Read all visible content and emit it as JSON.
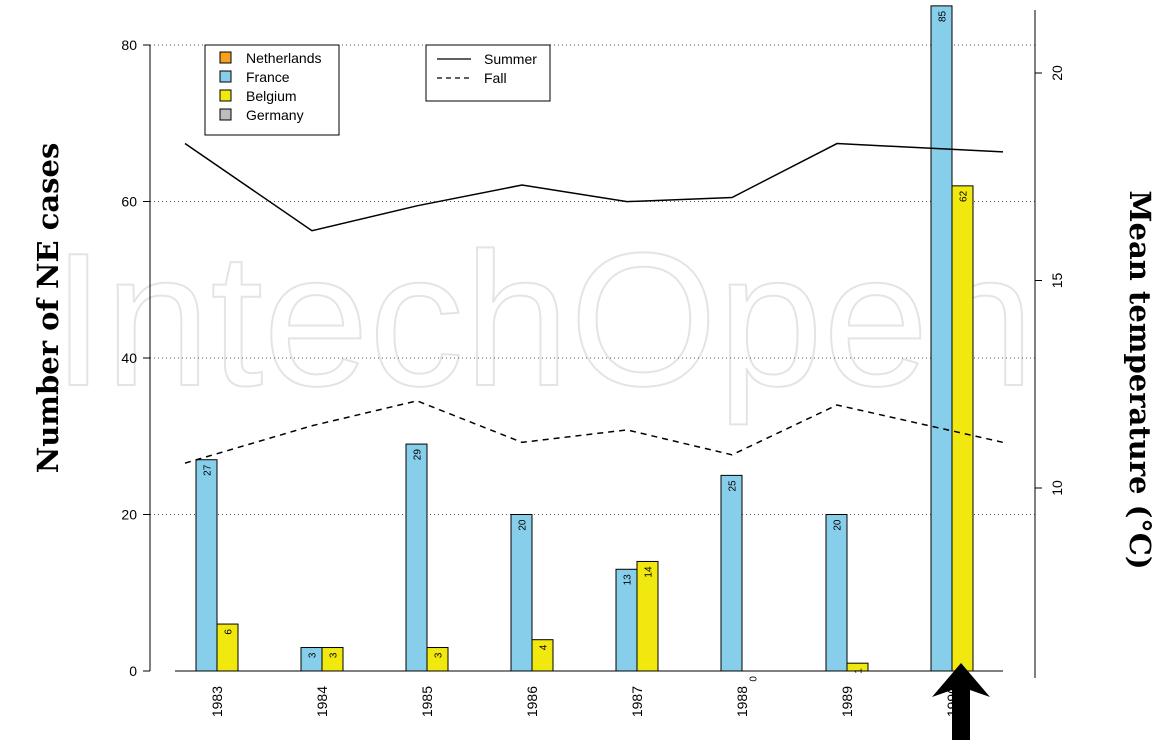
{
  "chart_data": {
    "type": "bar",
    "categories": [
      "1983",
      "1984",
      "1985",
      "1986",
      "1987",
      "1988",
      "1989",
      "1990"
    ],
    "series": [
      {
        "name": "France",
        "color": "#87ceeb",
        "values": [
          27,
          3,
          29,
          20,
          13,
          25,
          20,
          85
        ]
      },
      {
        "name": "Belgium",
        "color": "#f0e80f",
        "values": [
          6,
          3,
          3,
          4,
          14,
          0,
          1,
          62
        ]
      }
    ],
    "legend_bars": [
      {
        "name": "Netherlands",
        "color": "#f7a21a"
      },
      {
        "name": "France",
        "color": "#87ceeb"
      },
      {
        "name": "Belgium",
        "color": "#f0e80f"
      },
      {
        "name": "Germany",
        "color": "#bdbdbd"
      }
    ],
    "lines": [
      {
        "name": "Summer",
        "style": "solid",
        "values": [
          18.3,
          16.2,
          16.8,
          17.3,
          16.9,
          17.0,
          18.3,
          18.1
        ]
      },
      {
        "name": "Fall",
        "style": "dashed",
        "values": [
          10.6,
          11.5,
          12.1,
          11.1,
          11.4,
          10.8,
          12.0,
          11.1
        ]
      }
    ],
    "ylabel": "Number of NE cases",
    "ylabel_right": "Mean temperature (°C)",
    "ylim": [
      0,
      90
    ],
    "yticks": [
      "0",
      "20",
      "40",
      "60",
      "80"
    ],
    "ylim_right": [
      7.5,
      21.5
    ],
    "yticks_right": [
      "10",
      "15",
      "20"
    ],
    "grid": "dotted horizontal",
    "highlight_arrow_category": "1990"
  },
  "watermark": "IntechOpen"
}
